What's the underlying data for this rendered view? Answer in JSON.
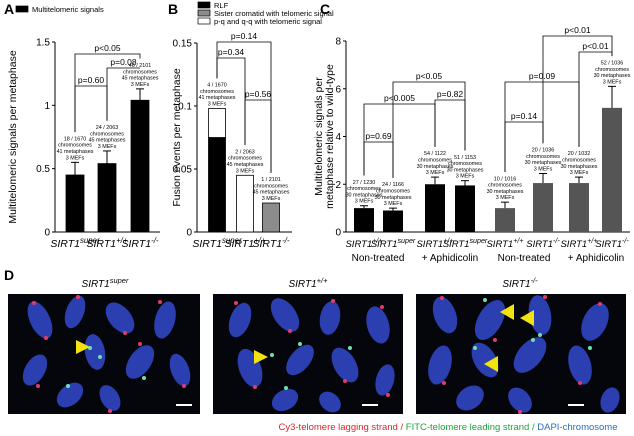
{
  "panel_labels": [
    "A",
    "B",
    "C",
    "D"
  ],
  "chart_data": [
    {
      "type": "bar",
      "ylabel": [
        "Multitelomeric signals per metaphase"
      ],
      "categories": [
        "SIRT1super",
        "SIRT1+/+",
        "SIRT1-/-"
      ],
      "series": [
        {
          "name": "Multitelomeric signals",
          "color": "#000000",
          "values": [
            0.45,
            0.54,
            1.04
          ],
          "errors": [
            0.1,
            0.1,
            0.09
          ]
        }
      ],
      "ylim": [
        0,
        1.5
      ],
      "yticks": [
        0,
        0.5,
        1,
        1.5
      ],
      "bar_notes": [
        [
          "18 / 1670",
          "chromosomes",
          "41 metaphases",
          "3 MEFs"
        ],
        [
          "24 / 2063",
          "chromosomes",
          "45 metaphases",
          "3 MEFs"
        ],
        [
          "46 / 2101",
          "chromosomes",
          "45 metaphases",
          "3 MEFs"
        ]
      ],
      "annotations": [
        "p<0.05",
        "p=0.08",
        "p=0.60"
      ]
    },
    {
      "type": "bar",
      "stacked": true,
      "ylabel": [
        "Fusion events per metaphase"
      ],
      "categories": [
        "SIRT1super",
        "SIRT1+/+",
        "SIRT1-/-"
      ],
      "series": [
        {
          "name": "RLF",
          "color": "#000000",
          "values": [
            0.075,
            0,
            0
          ]
        },
        {
          "name": "Sister cromatid with telomeric signal",
          "color": "#8c8c8c",
          "values": [
            0,
            0,
            0.023
          ]
        },
        {
          "name": "p-q and q-q with telomeric signal",
          "color": "#ffffff",
          "values": [
            0.023,
            0.045,
            0
          ]
        }
      ],
      "ylim": [
        0,
        0.15
      ],
      "yticks": [
        0,
        0.05,
        0.1,
        0.15
      ],
      "bar_notes": [
        [
          "4 / 1670",
          "chromosomes",
          "41 metaphases",
          "3 MEFs"
        ],
        [
          "2 / 2063",
          "chromosomes",
          "45 metaphases",
          "3 MEFs"
        ],
        [
          "1 / 2101",
          "chromosomes",
          "45 metaphases",
          "3 MEFs"
        ]
      ],
      "annotations": [
        "p=0.14",
        "p=0.34",
        "p=0.56"
      ]
    },
    {
      "type": "bar",
      "ylabel": [
        "Multitelomeric signals per",
        "metaphase relative to wild-type"
      ],
      "categories": [
        "SIRT1+/+",
        "SIRT1super",
        "SIRT1+/+",
        "SIRT1super",
        "SIRT1+/+",
        "SIRT1-/-",
        "SIRT1+/+",
        "SIRT1-/-"
      ],
      "values": [
        1.0,
        0.9,
        2.0,
        1.95,
        1.0,
        2.05,
        2.05,
        5.2
      ],
      "errors": [
        0.1,
        0.1,
        0.3,
        0.2,
        0.25,
        0.4,
        0.25,
        0.9
      ],
      "bar_colors": [
        "#000000",
        "#000000",
        "#000000",
        "#000000",
        "#555555",
        "#555555",
        "#555555",
        "#555555"
      ],
      "groups": [
        "Non-treated",
        "+ Aphidicolin",
        "Non-treated",
        "+ Aphidicolin"
      ],
      "ylim": [
        0,
        8
      ],
      "yticks": [
        0,
        2,
        4,
        6,
        8
      ],
      "bar_notes": [
        [
          "27 / 1230",
          "chromosomes",
          "30 metaphases",
          "3 MEFs"
        ],
        [
          "24 / 1166",
          "chromosomes",
          "30 metaphases",
          "3 MEFs"
        ],
        [
          "54 / 1122",
          "chromosomes",
          "30 metaphases",
          "3 MEFs"
        ],
        [
          "51 / 1153",
          "chromosomes",
          "30 metaphases",
          "3 MEFs"
        ],
        [
          "10 / 1016",
          "chromosomes",
          "30 metaphases",
          "3 MEFs"
        ],
        [
          "20 / 1036",
          "chromosomes",
          "30 metaphases",
          "3 MEFs"
        ],
        [
          "20 / 1032",
          "chromosomes",
          "30 metaphases",
          "3 MEFs"
        ],
        [
          "52 / 1036",
          "chromosomes",
          "30 metaphases",
          "3 MEFs"
        ]
      ],
      "annotations": [
        "p<0.005",
        "p=0.69",
        "p<0.05",
        "p=0.82",
        "p=0.09",
        "p=0.14",
        "p<0.01",
        "p<0.01"
      ]
    }
  ],
  "micrographs": {
    "titles": [
      "SIRT1super",
      "SIRT1+/+",
      "SIRT1-/-"
    ],
    "caption": [
      {
        "text": "Cy3-telomere lagging strand / ",
        "color": "#e0242a"
      },
      {
        "text": "FITC-telomere leading strand / ",
        "color": "#1fa33a"
      },
      {
        "text": "DAPI-chromosome",
        "color": "#2a6fc0"
      }
    ]
  }
}
